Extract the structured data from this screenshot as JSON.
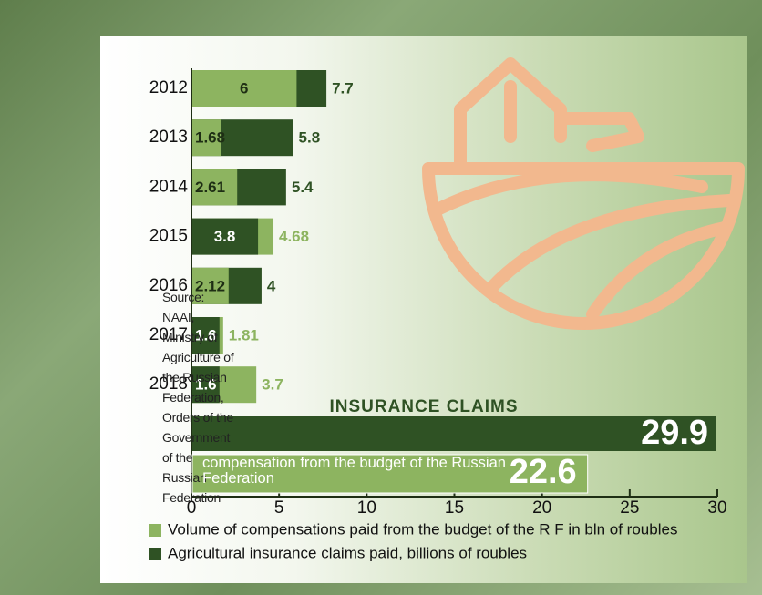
{
  "chart_data": {
    "type": "bar",
    "categories": [
      "2012",
      "2013",
      "2014",
      "2015",
      "2016",
      "2017",
      "2018"
    ],
    "series": [
      {
        "name": "Volume of compensations paid from the budget of the R F  in bln of roubles",
        "color": "#8db460",
        "values": [
          6,
          1.68,
          2.61,
          4.68,
          2.12,
          1.81,
          3.7
        ]
      },
      {
        "name": "Agricultural insurance claims paid, billions of roubles",
        "color": "#2f5224",
        "values": [
          7.7,
          5.8,
          5.4,
          3.8,
          4,
          1.6,
          1.6
        ]
      }
    ],
    "xlim": [
      0,
      30
    ],
    "xticks": [
      0,
      5,
      10,
      15,
      20,
      25,
      30
    ],
    "totals": {
      "claims_title": "INSURANCE CLAIMS",
      "claims_value": 29.9,
      "compensation_label": "compensation from the budget of the Russian Federation",
      "compensation_value": 22.6
    },
    "source": "Source: NAAI, Ministry of Agriculture of the Russian Federation, Orders of the Government of the Russian Federation"
  }
}
